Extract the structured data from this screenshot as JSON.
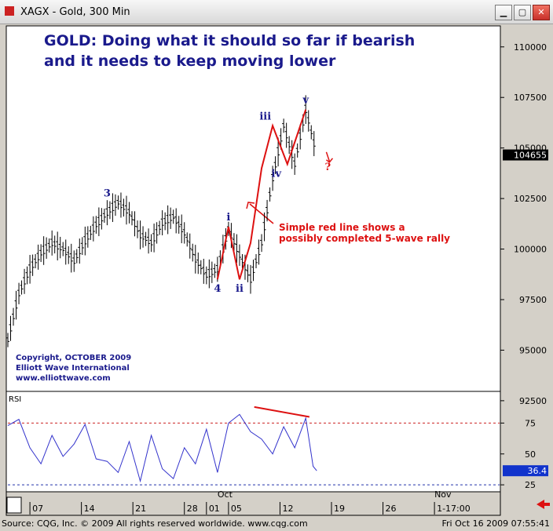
{
  "window": {
    "title": "XAGX - Gold, 300 Min",
    "minimize_icon": "minimize-icon",
    "maximize_icon": "maximize-icon",
    "close_icon": "close-icon"
  },
  "headline": {
    "line1": "GOLD: Doing what it should so far if bearish",
    "line2": "and it needs to keep moving lower",
    "color": "#1a1a8c"
  },
  "copyright": {
    "line1": "Copyright, OCTOBER 2009",
    "line2": "Elliott Wave International",
    "line3": "www.elliottwave.com"
  },
  "annotation": {
    "line1": "Simple red line shows a",
    "line2": "possibly completed 5-wave rally",
    "color": "#dd1111"
  },
  "footer": {
    "source": "Source: CQG, Inc. © 2009 All rights reserved worldwide. www.cqg.com",
    "timestamp": "Fri Oct 16 2009 07:55:41"
  },
  "chart_data": [
    {
      "type": "ohlc",
      "price_unit": "gold price (x100)",
      "ylim": [
        93000,
        111000
      ],
      "y_ticks": [
        110000,
        107500,
        105000,
        102500,
        100000,
        97500,
        95000,
        92500
      ],
      "last_price": "104655",
      "series": [
        {
          "x": [
            0,
            1.5,
            3,
            4.5,
            6,
            7.5,
            9,
            10.5,
            12,
            13.5,
            15,
            16.5,
            18,
            19.5,
            21,
            22.5,
            24,
            25.5,
            27,
            28.5,
            30,
            31.5,
            33,
            34.5,
            36,
            37.5,
            39,
            40.5,
            42
          ],
          "y": [
            95500,
            97800,
            99000,
            99800,
            100300,
            100000,
            99400,
            100400,
            101200,
            101800,
            102300,
            101800,
            100700,
            100300,
            101300,
            101600,
            100800,
            99500,
            98700,
            99000,
            101000,
            99700,
            98500,
            100300,
            103500,
            106100,
            104200,
            106900,
            104655
          ]
        }
      ],
      "wave_labels": [
        {
          "label": "3",
          "x": 13.5,
          "y": 102300
        },
        {
          "label": "4",
          "x": 28.5,
          "y": 98500
        },
        {
          "label": "i",
          "x": 30,
          "y": 101100
        },
        {
          "label": "ii",
          "x": 31.5,
          "y": 98500
        },
        {
          "label": "iii",
          "x": 35,
          "y": 106100
        },
        {
          "label": "iv",
          "x": 36.5,
          "y": 104200
        },
        {
          "label": "v",
          "x": 40.5,
          "y": 106900
        },
        {
          "label": "?",
          "x": 43.5,
          "y": 103600
        }
      ],
      "wave_line": {
        "color": "#dd1111",
        "x": [
          28.5,
          30,
          31.5,
          33,
          34.5,
          36,
          38,
          40.5
        ],
        "y": [
          98500,
          101100,
          98500,
          100300,
          104000,
          106100,
          104200,
          106900
        ]
      }
    },
    {
      "type": "line",
      "name": "RSI",
      "ylim": [
        20,
        100
      ],
      "y_ticks": [
        75,
        50,
        25
      ],
      "overbought": 75,
      "oversold": 25,
      "last_value": "36.4",
      "series": [
        {
          "x": [
            0,
            1.5,
            3,
            4.5,
            6,
            7.5,
            9,
            10.5,
            12,
            13.5,
            15,
            16.5,
            18,
            19.5,
            21,
            22.5,
            24,
            25.5,
            27,
            28.5,
            30,
            31.5,
            33,
            34.5,
            36,
            37.5,
            39,
            40.5,
            41.5,
            42
          ],
          "y": [
            73,
            78,
            55,
            42,
            65,
            48,
            58,
            74,
            46,
            44,
            35,
            60,
            28,
            65,
            38,
            30,
            55,
            42,
            70,
            35,
            75,
            82,
            68,
            62,
            50,
            72,
            55,
            79,
            40,
            36.4
          ]
        }
      ],
      "divergence_line": {
        "color": "#dd1111",
        "x": [
          33.5,
          41
        ],
        "y": [
          88,
          80
        ]
      }
    }
  ],
  "x_axis": {
    "tick_labels": [
      "07",
      "14",
      "21",
      "28",
      "01",
      "05",
      "12",
      "19",
      "26",
      "1-17:00"
    ],
    "tick_x": [
      3,
      10,
      17,
      24,
      27,
      30,
      37,
      44,
      51,
      58
    ],
    "month_labels": [
      {
        "label": "Oct",
        "x": 28.5
      },
      {
        "label": "Nov",
        "x": 58
      }
    ],
    "xlim": [
      0,
      66
    ]
  }
}
